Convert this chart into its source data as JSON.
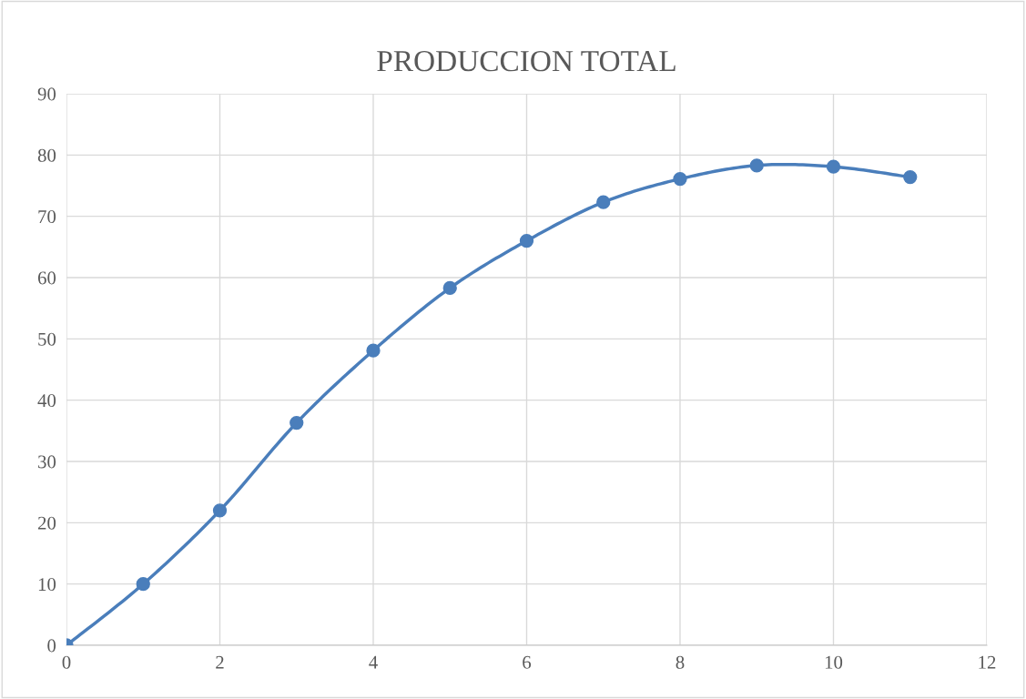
{
  "chart_data": {
    "type": "line",
    "title": "PRODUCCION TOTAL",
    "x": [
      0,
      1,
      2,
      3,
      4,
      5,
      6,
      7,
      8,
      9,
      10,
      11
    ],
    "series": [
      {
        "color": "#4a7ebb",
        "values": [
          0,
          10,
          22,
          36.3,
          48.1,
          58.3,
          66,
          72.3,
          76.1,
          78.3,
          78.1,
          76.4
        ]
      }
    ],
    "xlim": [
      0,
      12
    ],
    "xticks": [
      0,
      2,
      4,
      6,
      8,
      10,
      12
    ],
    "ylim": [
      0,
      90
    ],
    "yticks": [
      0,
      10,
      20,
      30,
      40,
      50,
      60,
      70,
      80,
      90
    ],
    "grid": true,
    "marker": "circle",
    "line_style": "solid",
    "legend": false
  }
}
